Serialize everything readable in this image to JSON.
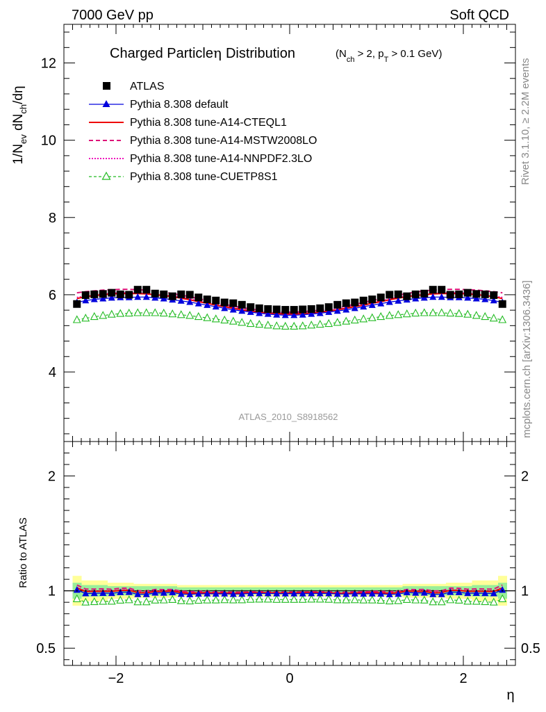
{
  "header": {
    "left": "7000 GeV pp",
    "right": "Soft QCD"
  },
  "side_labels": {
    "rivet": "Rivet 3.1.10, ≥ 2.2M events",
    "mcplots": "mcplots.cern.ch [arXiv:1306.3436]"
  },
  "chart_data": [
    {
      "type": "scatter",
      "title": "Charged Particle η Distribution",
      "title_main": "Charged Particle",
      "title_eta": "η",
      "title_word": "Distribution",
      "subtitle": "(N_ch > 2, p_T > 0.1 GeV)",
      "analysis_label": "ATLAS_2010_S8918562",
      "ylabel": "1/N_ev dN_ch/dη",
      "ylabel_parts": {
        "a": "1/N",
        "a_sub": "ev",
        "b": " dN",
        "b_sub": "ch",
        "c": "/dη"
      },
      "xlim": [
        -2.6,
        2.6
      ],
      "ylim": [
        2.2,
        13.0
      ],
      "y_ticks": [
        4,
        6,
        8,
        10,
        12
      ],
      "x_ticks": [
        -2,
        0,
        2
      ],
      "x": [
        -2.45,
        -2.35,
        -2.25,
        -2.15,
        -2.05,
        -1.95,
        -1.85,
        -1.75,
        -1.65,
        -1.55,
        -1.45,
        -1.35,
        -1.25,
        -1.15,
        -1.05,
        -0.95,
        -0.85,
        -0.75,
        -0.65,
        -0.55,
        -0.45,
        -0.35,
        -0.25,
        -0.15,
        -0.05,
        0.05,
        0.15,
        0.25,
        0.35,
        0.45,
        0.55,
        0.65,
        0.75,
        0.85,
        0.95,
        1.05,
        1.15,
        1.25,
        1.35,
        1.45,
        1.55,
        1.65,
        1.75,
        1.85,
        1.95,
        2.05,
        2.15,
        2.25,
        2.35,
        2.45
      ],
      "legend": {
        "placement": "top-left",
        "entries": [
          "ATLAS",
          "Pythia 8.308 default",
          "Pythia 8.308 tune-A14-CTEQL1",
          "Pythia 8.308 tune-A14-MSTW2008LO",
          "Pythia 8.308 tune-A14-NNPDF2.3LO",
          "Pythia 8.308 tune-CUETP8S1"
        ]
      },
      "series": [
        {
          "name": "ATLAS",
          "color": "#000000",
          "marker": "square",
          "values": [
            5.76,
            5.99,
            6.01,
            6.02,
            6.05,
            6.01,
            6.0,
            6.13,
            6.13,
            6.03,
            6.01,
            5.96,
            6.01,
            6.0,
            5.93,
            5.88,
            5.85,
            5.8,
            5.78,
            5.74,
            5.68,
            5.65,
            5.63,
            5.62,
            5.61,
            5.61,
            5.62,
            5.63,
            5.65,
            5.68,
            5.74,
            5.78,
            5.8,
            5.85,
            5.88,
            5.93,
            6.0,
            6.01,
            5.96,
            6.01,
            6.03,
            6.13,
            6.13,
            6.0,
            6.01,
            6.05,
            6.02,
            6.01,
            5.99,
            5.76
          ]
        },
        {
          "name": "Pythia 8.308 default",
          "color": "#0000dd",
          "marker": "triangle",
          "values": [
            5.8,
            5.85,
            5.88,
            5.9,
            5.92,
            5.93,
            5.93,
            5.94,
            5.94,
            5.92,
            5.9,
            5.87,
            5.84,
            5.81,
            5.77,
            5.73,
            5.69,
            5.65,
            5.61,
            5.58,
            5.55,
            5.52,
            5.5,
            5.48,
            5.47,
            5.47,
            5.48,
            5.5,
            5.52,
            5.55,
            5.58,
            5.61,
            5.65,
            5.69,
            5.73,
            5.77,
            5.81,
            5.84,
            5.87,
            5.9,
            5.92,
            5.94,
            5.94,
            5.93,
            5.93,
            5.92,
            5.9,
            5.88,
            5.85,
            5.8
          ]
        },
        {
          "name": "Pythia 8.308 tune-A14-CTEQL1",
          "color": "#ee0000",
          "marker": "none",
          "values": [
            5.9,
            5.95,
            5.98,
            6.0,
            6.02,
            6.03,
            6.03,
            6.03,
            6.02,
            6.0,
            5.98,
            5.95,
            5.91,
            5.87,
            5.82,
            5.78,
            5.73,
            5.69,
            5.65,
            5.61,
            5.58,
            5.55,
            5.53,
            5.51,
            5.5,
            5.5,
            5.51,
            5.53,
            5.55,
            5.58,
            5.61,
            5.65,
            5.69,
            5.73,
            5.78,
            5.82,
            5.87,
            5.91,
            5.95,
            5.98,
            6.0,
            6.02,
            6.03,
            6.03,
            6.03,
            6.02,
            6.0,
            5.98,
            5.95,
            5.9
          ]
        },
        {
          "name": "Pythia 8.308 tune-A14-MSTW2008LO",
          "color": "#dd1177",
          "marker": "none",
          "values": [
            6.05,
            6.08,
            6.1,
            6.12,
            6.13,
            6.14,
            6.14,
            6.13,
            6.12,
            6.1,
            6.07,
            6.03,
            5.99,
            5.95,
            5.9,
            5.85,
            5.8,
            5.75,
            5.71,
            5.67,
            5.63,
            5.6,
            5.58,
            5.56,
            5.55,
            5.55,
            5.56,
            5.58,
            5.6,
            5.63,
            5.67,
            5.71,
            5.75,
            5.8,
            5.85,
            5.9,
            5.95,
            5.99,
            6.03,
            6.07,
            6.1,
            6.12,
            6.13,
            6.14,
            6.14,
            6.13,
            6.12,
            6.1,
            6.08,
            6.05
          ]
        },
        {
          "name": "Pythia 8.308 tune-A14-NNPDF2.3LO",
          "color": "#ee11bb",
          "marker": "none",
          "values": [
            5.93,
            5.97,
            6.0,
            6.02,
            6.04,
            6.05,
            6.05,
            6.05,
            6.04,
            6.02,
            6.0,
            5.97,
            5.93,
            5.89,
            5.84,
            5.8,
            5.75,
            5.71,
            5.67,
            5.63,
            5.6,
            5.57,
            5.55,
            5.53,
            5.52,
            5.52,
            5.53,
            5.55,
            5.57,
            5.6,
            5.63,
            5.67,
            5.71,
            5.75,
            5.8,
            5.84,
            5.89,
            5.93,
            5.97,
            6.0,
            6.02,
            6.04,
            6.05,
            6.05,
            6.05,
            6.04,
            6.02,
            6.0,
            5.97,
            5.93
          ]
        },
        {
          "name": "Pythia 8.308 tune-CUETP8S1",
          "color": "#22bb22",
          "marker": "open-triangle",
          "values": [
            5.35,
            5.39,
            5.43,
            5.46,
            5.49,
            5.51,
            5.52,
            5.53,
            5.53,
            5.53,
            5.52,
            5.5,
            5.48,
            5.46,
            5.43,
            5.4,
            5.37,
            5.34,
            5.31,
            5.28,
            5.25,
            5.23,
            5.21,
            5.19,
            5.18,
            5.18,
            5.19,
            5.21,
            5.23,
            5.25,
            5.28,
            5.31,
            5.34,
            5.37,
            5.4,
            5.43,
            5.46,
            5.48,
            5.5,
            5.52,
            5.53,
            5.53,
            5.53,
            5.52,
            5.51,
            5.49,
            5.46,
            5.43,
            5.39,
            5.35
          ]
        }
      ]
    },
    {
      "type": "scatter",
      "ylabel": "Ratio to ATLAS",
      "xlabel": "η",
      "xlim": [
        -2.6,
        2.6
      ],
      "ylim": [
        0.35,
        2.3
      ],
      "y_ticks": [
        0.5,
        1,
        2
      ],
      "x_ticks": [
        -2,
        0,
        2
      ],
      "x_tick_labels": [
        "−2",
        "0",
        "2"
      ],
      "bands": {
        "green_halfwidth": [
          0.07,
          0.05,
          0.05,
          0.05,
          0.04,
          0.04,
          0.04,
          0.04,
          0.04,
          0.04,
          0.04,
          0.04,
          0.03,
          0.03,
          0.03,
          0.03,
          0.03,
          0.03,
          0.03,
          0.03,
          0.03,
          0.03,
          0.03,
          0.03,
          0.03,
          0.03,
          0.03,
          0.03,
          0.03,
          0.03,
          0.03,
          0.03,
          0.03,
          0.03,
          0.03,
          0.03,
          0.03,
          0.03,
          0.04,
          0.04,
          0.04,
          0.04,
          0.04,
          0.04,
          0.04,
          0.04,
          0.05,
          0.05,
          0.05,
          0.07
        ],
        "yellow_halfwidth": [
          0.13,
          0.09,
          0.09,
          0.09,
          0.07,
          0.07,
          0.07,
          0.06,
          0.06,
          0.06,
          0.06,
          0.06,
          0.05,
          0.05,
          0.05,
          0.05,
          0.05,
          0.05,
          0.05,
          0.05,
          0.05,
          0.05,
          0.05,
          0.05,
          0.05,
          0.05,
          0.05,
          0.05,
          0.05,
          0.05,
          0.05,
          0.05,
          0.05,
          0.05,
          0.05,
          0.05,
          0.05,
          0.05,
          0.06,
          0.06,
          0.06,
          0.06,
          0.06,
          0.07,
          0.07,
          0.07,
          0.09,
          0.09,
          0.09,
          0.13
        ]
      }
    }
  ]
}
